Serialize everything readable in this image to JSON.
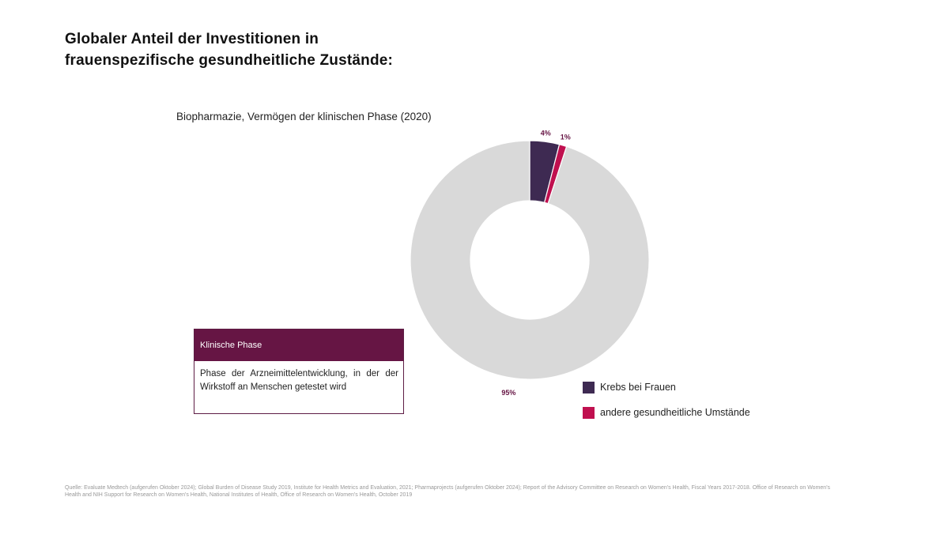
{
  "title_lines": [
    "Globaler Anteil der Investitionen in",
    "frauenspezifische gesundheitliche Zustände:"
  ],
  "info_box": {
    "heading": "Klinische Phase",
    "text": "Phase der Arzneimittelentwicklung, in der der Wirkstoff an Menschen getestet wird"
  },
  "footnote": "Quelle: Evaluate Medtech (aufgerufen Oktober 2024); Global Burden of Disease Study 2019, Institute for Health Metrics and Evaluation, 2021; Pharmaprojects (aufgerufen Oktober 2024); Report of the Advisory Committee on Research on Women's Health, Fiscal Years 2017-2018. Office of Research on Women's Health and NIH Support for Research on Women's Health, National Institutes of Health, Office of Research on Women's Health, October 2019",
  "colors": {
    "accent": "#661544"
  },
  "chart_data": {
    "type": "pie",
    "variant": "donut",
    "title": "Biopharmazie, Vermögen der klinischen Phase (2020)",
    "slices": [
      {
        "name": "Krebs bei Frauen",
        "value": 4,
        "label": "4%",
        "color": "#3e2a52",
        "in_legend": true
      },
      {
        "name": "andere gesundheitliche Umstände",
        "value": 1,
        "label": "1%",
        "color": "#c0104f",
        "in_legend": true
      },
      {
        "name": "",
        "value": 95,
        "label": "95%",
        "color": "#d9d9d9",
        "in_legend": false
      }
    ],
    "legend_position": "bottom-right",
    "label_color": "#661544"
  }
}
